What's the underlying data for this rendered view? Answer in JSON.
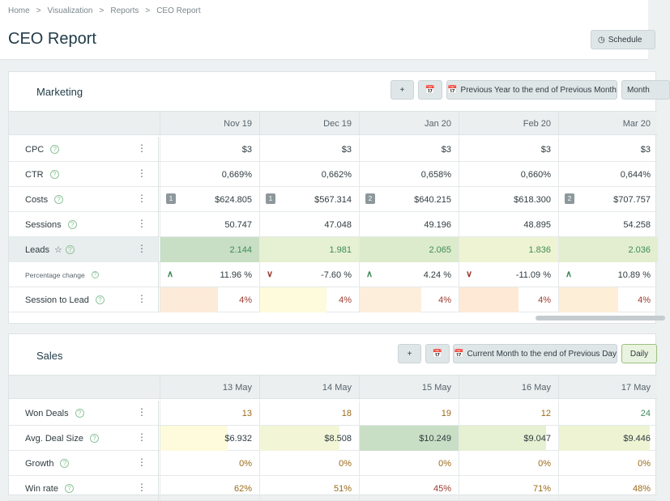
{
  "breadcrumb": [
    "Home",
    "Visualization",
    "Reports",
    "CEO Report"
  ],
  "page_title": "CEO Report",
  "schedule_label": "Schedule",
  "marketing": {
    "title": "Marketing",
    "add_label": "+",
    "range_label": "Previous Year to the end of Previous Month",
    "period_label": "Month",
    "columns": [
      "Nov 19",
      "Dec 19",
      "Jan 20",
      "Feb 20",
      "Mar 20"
    ],
    "rows": [
      {
        "label": "CPC",
        "values": [
          "$3",
          "$3",
          "$3",
          "$3",
          "$3"
        ]
      },
      {
        "label": "CTR",
        "values": [
          "0,669%",
          "0,662%",
          "0,658%",
          "0,660%",
          "0,644%"
        ]
      },
      {
        "label": "Costs",
        "values": [
          "$624.805",
          "$567.314",
          "$640.215",
          "$618.300",
          "$707.757"
        ],
        "badges": [
          "1",
          "1",
          "2",
          "",
          "2"
        ]
      },
      {
        "label": "Sessions",
        "values": [
          "50.747",
          "47.048",
          "49.196",
          "48.895",
          "54.258"
        ]
      },
      {
        "label": "Leads",
        "values": [
          "2.144",
          "1.981",
          "2.065",
          "1.836",
          "2.036"
        ],
        "colors": [
          "#c9dfc5",
          "#e6f0d2",
          "#dcebcc",
          "#eef4d3",
          "#e2eecf"
        ]
      },
      {
        "label": "Percentage change",
        "values": [
          "11.96 %",
          "-7.60 %",
          "4.24 %",
          "-11.09 %",
          "10.89 %"
        ],
        "arrows": [
          "up",
          "down",
          "up",
          "down",
          "up"
        ]
      },
      {
        "label": "Session to Lead",
        "values": [
          "4%",
          "4%",
          "4%",
          "4%",
          "4%"
        ],
        "colors": [
          "#fcebd8",
          "#fdfbdb",
          "#fdeedb",
          "#fde9d6",
          "#fdeed8"
        ],
        "fill": [
          0.58,
          0.67,
          0.62,
          0.6,
          0.6
        ]
      }
    ]
  },
  "sales": {
    "title": "Sales",
    "add_label": "+",
    "range_label": "Current Month to the end of Previous Day",
    "period_label": "Daily",
    "columns": [
      "13 May",
      "14 May",
      "15 May",
      "16 May",
      "17 May"
    ],
    "rows": [
      {
        "label": "Won Deals",
        "values": [
          "13",
          "18",
          "19",
          "12",
          "24"
        ],
        "tones": [
          "amber",
          "amber",
          "amber",
          "amber",
          "green"
        ]
      },
      {
        "label": "Avg. Deal Size",
        "values": [
          "$6.932",
          "$8.508",
          "$10.249",
          "$9.047",
          "$9.446"
        ],
        "colors": [
          "#fdfbdb",
          "#f3f6d6",
          "#c9dfc5",
          "#e6f0d2",
          "#eef4d3"
        ],
        "fill": [
          0.68,
          0.8,
          1.0,
          0.88,
          0.92
        ]
      },
      {
        "label": "Growth",
        "values": [
          "0%",
          "0%",
          "0%",
          "0%",
          "0%"
        ],
        "tones": [
          "amber",
          "amber",
          "amber",
          "amber",
          "amber"
        ]
      },
      {
        "label": "Win rate",
        "values": [
          "62%",
          "51%",
          "45%",
          "71%",
          "48%"
        ],
        "tones": [
          "amber",
          "amber",
          "red",
          "amber",
          "amber"
        ]
      }
    ]
  }
}
